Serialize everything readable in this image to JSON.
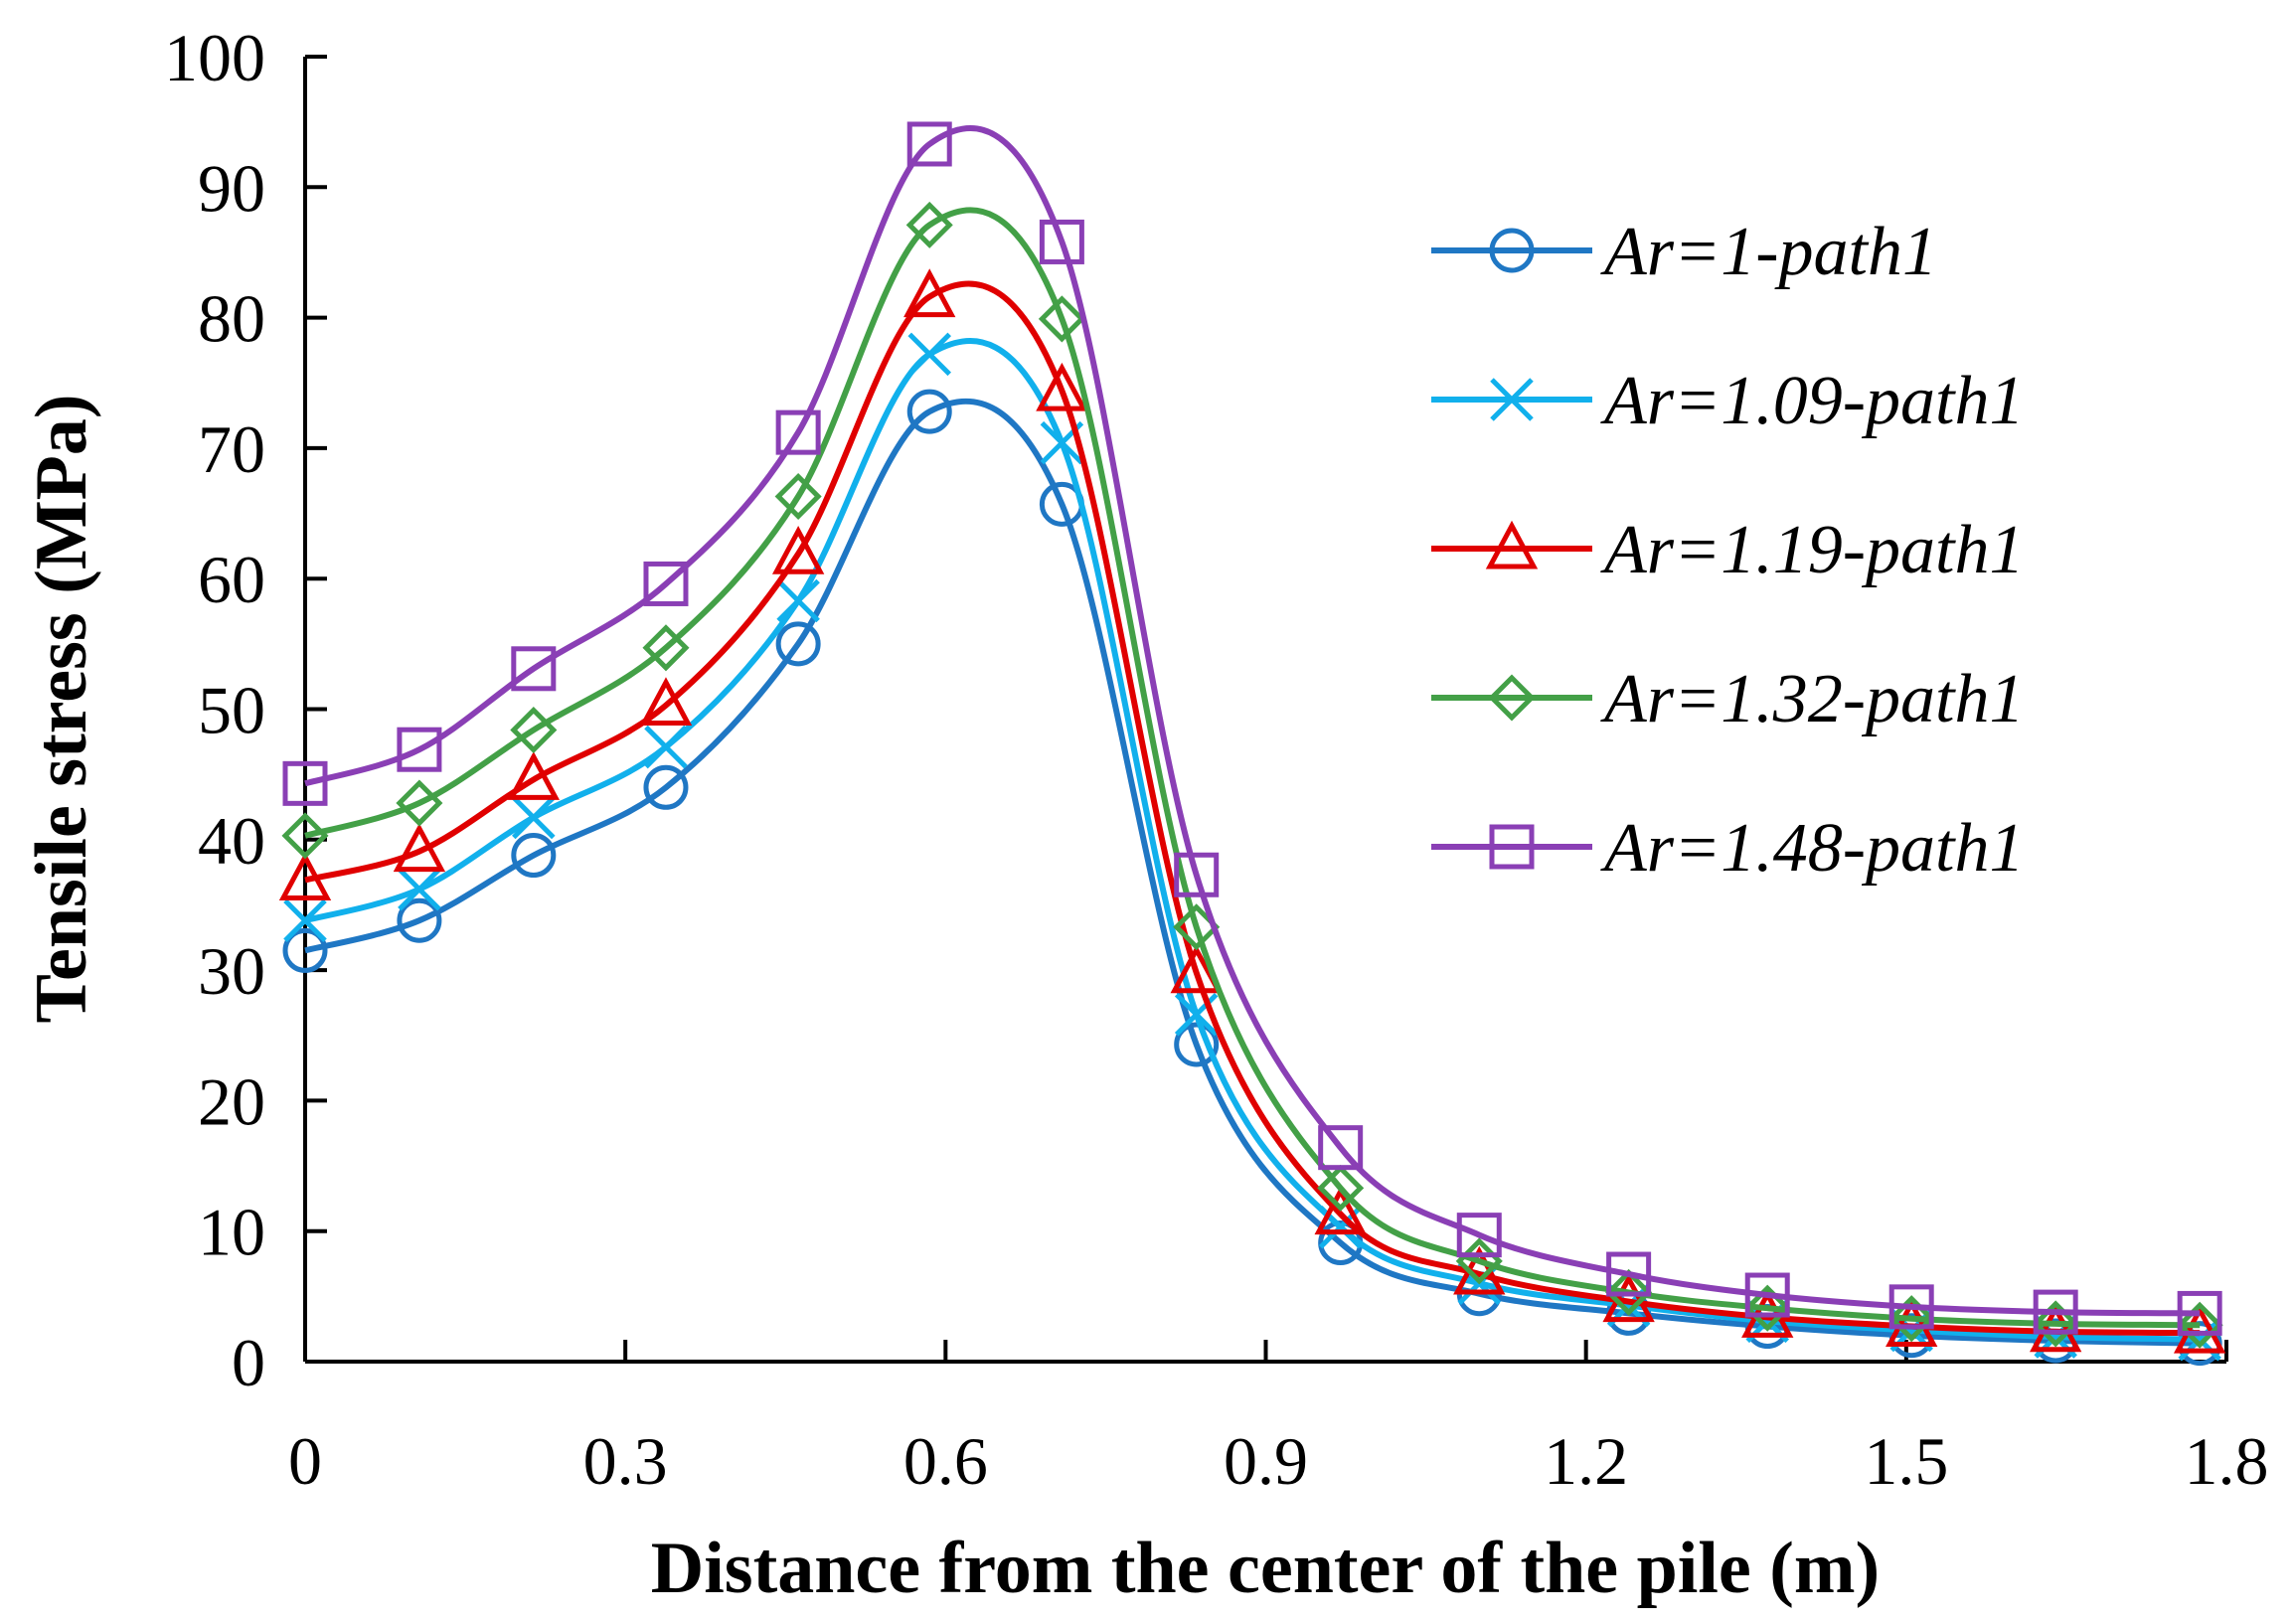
{
  "chart_data": {
    "type": "line",
    "title": "",
    "xlabel": "Distance from the center of the pile (m)",
    "ylabel": "Tensile stress (MPa)",
    "xlim": [
      0,
      1.8
    ],
    "ylim": [
      0,
      100
    ],
    "x_ticks": [
      "0",
      "0.3",
      "0.6",
      "0.9",
      "1.2",
      "1.5",
      "1.8"
    ],
    "y_ticks": [
      "0",
      "10",
      "20",
      "30",
      "40",
      "50",
      "60",
      "70",
      "80",
      "90",
      "100"
    ],
    "x": [
      0,
      0.107,
      0.214,
      0.338,
      0.462,
      0.585,
      0.709,
      0.835,
      0.97,
      1.1,
      1.24,
      1.37,
      1.505,
      1.64,
      1.775
    ],
    "grid": false,
    "legend_position": "top-right",
    "series": [
      {
        "name": "Ar=1-path1",
        "color": "#1f77c4",
        "marker": "circle",
        "values": [
          31.5,
          33.8,
          38.8,
          44.0,
          55.0,
          72.8,
          65.7,
          24.3,
          9.1,
          5.2,
          3.7,
          2.7,
          2.0,
          1.6,
          1.4
        ]
      },
      {
        "name": "Ar=1.09-path1",
        "color": "#11b0ec",
        "marker": "x",
        "values": [
          33.8,
          36.2,
          41.7,
          47.1,
          58.3,
          77.2,
          70.4,
          26.6,
          10.3,
          6.0,
          4.3,
          3.1,
          2.4,
          1.9,
          1.7
        ]
      },
      {
        "name": "Ar=1.19-path1",
        "color": "#e00000",
        "marker": "triangle",
        "values": [
          36.9,
          39.1,
          44.6,
          50.3,
          61.9,
          81.6,
          74.4,
          29.8,
          11.3,
          6.7,
          4.6,
          3.4,
          2.7,
          2.3,
          2.2
        ]
      },
      {
        "name": "Ar=1.32-path1",
        "color": "#43a047",
        "marker": "diamond",
        "values": [
          40.3,
          42.8,
          48.4,
          54.7,
          66.3,
          87.1,
          79.9,
          33.3,
          13.3,
          7.7,
          5.3,
          4.1,
          3.3,
          2.9,
          2.8
        ]
      },
      {
        "name": "Ar=1.48-path1",
        "color": "#8a3fb5",
        "marker": "square",
        "values": [
          44.3,
          46.9,
          53.1,
          59.6,
          71.2,
          93.3,
          85.8,
          37.3,
          16.4,
          9.7,
          6.7,
          5.1,
          4.2,
          3.8,
          3.7
        ]
      }
    ]
  }
}
